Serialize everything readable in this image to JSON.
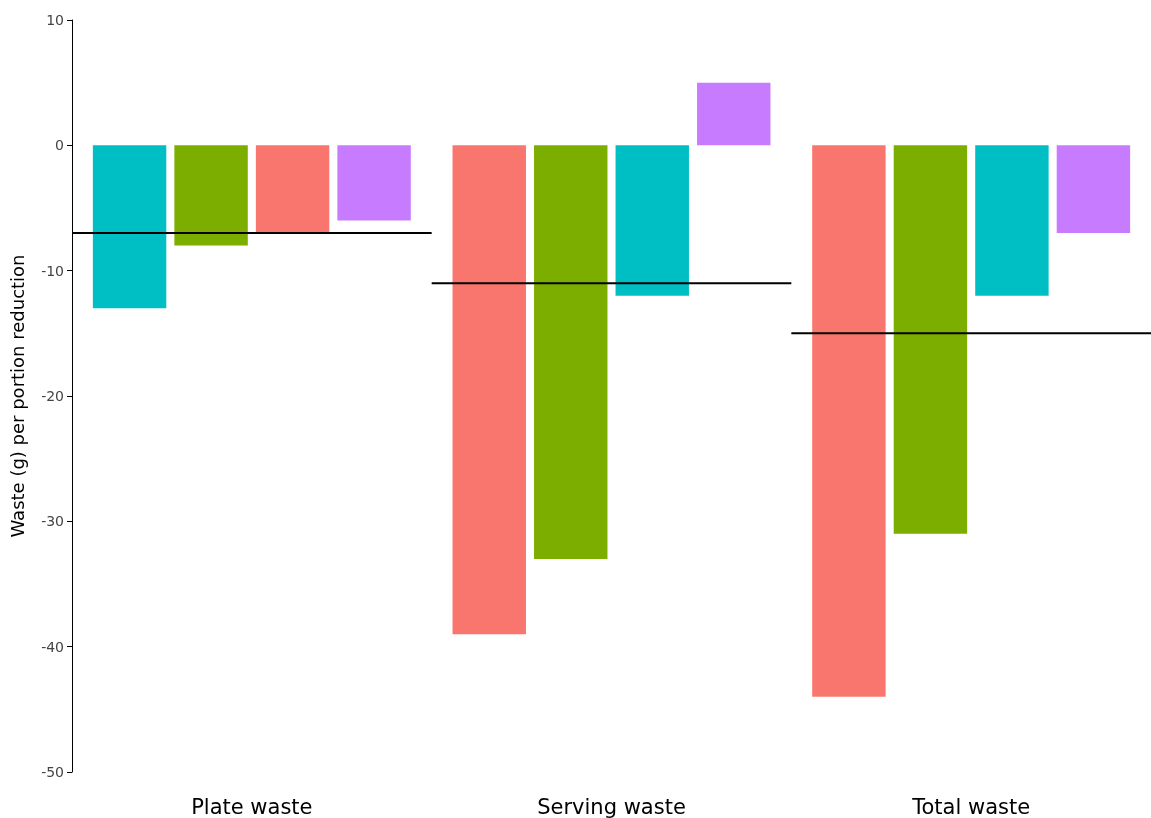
{
  "chart_data": {
    "type": "bar",
    "ylabel": "Waste (g) per portion reduction",
    "categories": [
      "Plate waste",
      "Serving waste",
      "Total waste"
    ],
    "series": [
      {
        "colors": [
          "#00bfc4",
          "#f8766d",
          "#f8766d"
        ],
        "values": [
          -13,
          -39,
          -44
        ]
      },
      {
        "colors": [
          "#7cae00",
          "#7cae00",
          "#7cae00"
        ],
        "values": [
          -8,
          -33,
          -31
        ]
      },
      {
        "colors": [
          "#f8766d",
          "#00bfc4",
          "#00bfc4"
        ],
        "values": [
          -7,
          -12,
          -12
        ]
      },
      {
        "colors": [
          "#c77cff",
          "#c77cff",
          "#c77cff"
        ],
        "values": [
          -6,
          5,
          -7
        ]
      }
    ],
    "ref_lines": [
      {
        "axis": "y",
        "value": -7,
        "color": "#000000"
      },
      {
        "axis": "y",
        "value": -11,
        "color": "#000000"
      },
      {
        "axis": "y",
        "value": -15,
        "color": "#000000"
      }
    ],
    "ylim": [
      -50,
      10
    ],
    "yticks": [
      -50,
      -40,
      -30,
      -20,
      -10,
      0,
      10
    ],
    "grid": false
  }
}
